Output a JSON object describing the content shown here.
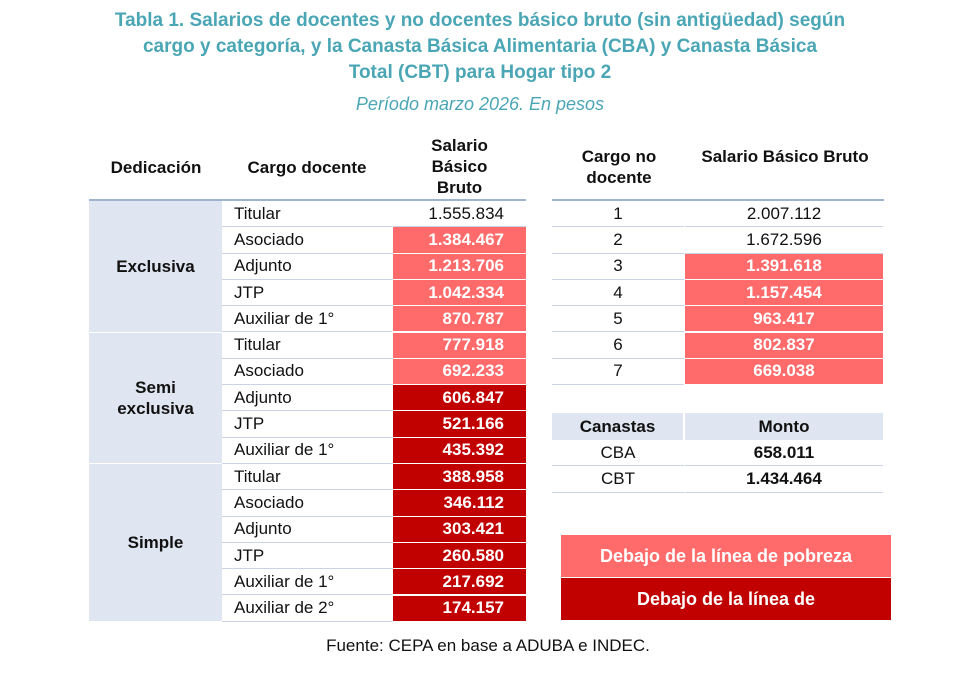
{
  "title": {
    "line1": "Tabla 1. Salarios de docentes y no docentes básico bruto (sin antigüedad) según",
    "line2": "cargo y categoría, y la Canasta Básica Alimentaria (CBA) y Canasta Básica",
    "line3": "Total (CBT) para Hogar tipo 2",
    "period": "Período marzo 2026. En pesos"
  },
  "docentes": {
    "headers": {
      "dedicacion": "Dedicación",
      "cargo": "Cargo docente",
      "salario": "Salario Básico Bruto"
    },
    "groups": [
      {
        "dedicacion": "Exclusiva",
        "rows": [
          {
            "cargo": "Titular",
            "salario": "1.555.834",
            "level": "none"
          },
          {
            "cargo": "Asociado",
            "salario": "1.384.467",
            "level": "pobreza"
          },
          {
            "cargo": "Adjunto",
            "salario": "1.213.706",
            "level": "pobreza"
          },
          {
            "cargo": "JTP",
            "salario": "1.042.334",
            "level": "pobreza"
          },
          {
            "cargo": "Auxiliar de 1°",
            "salario": "870.787",
            "level": "pobreza"
          }
        ]
      },
      {
        "dedicacion": "Semi exclusiva",
        "rows": [
          {
            "cargo": "Titular",
            "salario": "777.918",
            "level": "pobreza"
          },
          {
            "cargo": "Asociado",
            "salario": "692.233",
            "level": "pobreza"
          },
          {
            "cargo": "Adjunto",
            "salario": "606.847",
            "level": "indigencia"
          },
          {
            "cargo": "JTP",
            "salario": "521.166",
            "level": "indigencia"
          },
          {
            "cargo": "Auxiliar de 1°",
            "salario": "435.392",
            "level": "indigencia"
          }
        ]
      },
      {
        "dedicacion": "Simple",
        "rows": [
          {
            "cargo": "Titular",
            "salario": "388.958",
            "level": "indigencia"
          },
          {
            "cargo": "Asociado",
            "salario": "346.112",
            "level": "indigencia"
          },
          {
            "cargo": "Adjunto",
            "salario": "303.421",
            "level": "indigencia"
          },
          {
            "cargo": "JTP",
            "salario": "260.580",
            "level": "indigencia"
          },
          {
            "cargo": "Auxiliar de 1°",
            "salario": "217.692",
            "level": "indigencia"
          },
          {
            "cargo": "Auxiliar de 2°",
            "salario": "174.157",
            "level": "indigencia"
          }
        ]
      }
    ]
  },
  "no_docentes": {
    "headers": {
      "cargo": "Cargo no docente",
      "salario": "Salario Básico Bruto"
    },
    "rows": [
      {
        "cargo": "1",
        "salario": "2.007.112",
        "level": "none"
      },
      {
        "cargo": "2",
        "salario": "1.672.596",
        "level": "none"
      },
      {
        "cargo": "3",
        "salario": "1.391.618",
        "level": "pobreza"
      },
      {
        "cargo": "4",
        "salario": "1.157.454",
        "level": "pobreza"
      },
      {
        "cargo": "5",
        "salario": "963.417",
        "level": "pobreza"
      },
      {
        "cargo": "6",
        "salario": "802.837",
        "level": "pobreza"
      },
      {
        "cargo": "7",
        "salario": "669.038",
        "level": "pobreza"
      }
    ]
  },
  "canastas": {
    "headers": {
      "canasta": "Canastas",
      "monto": "Monto"
    },
    "rows": [
      {
        "canasta": "CBA",
        "monto": "658.011"
      },
      {
        "canasta": "CBT",
        "monto": "1.434.464"
      }
    ]
  },
  "legend": {
    "pobreza": "Debajo de la línea de pobreza",
    "indigencia": "Debajo de la línea de",
    "colors": {
      "pobreza": "#ff6b6b",
      "indigencia": "#c10000",
      "header_bg": "#dfe6f1",
      "title": "#4aa6b5"
    }
  },
  "source": "Fuente: CEPA en base a ADUBA e INDEC."
}
